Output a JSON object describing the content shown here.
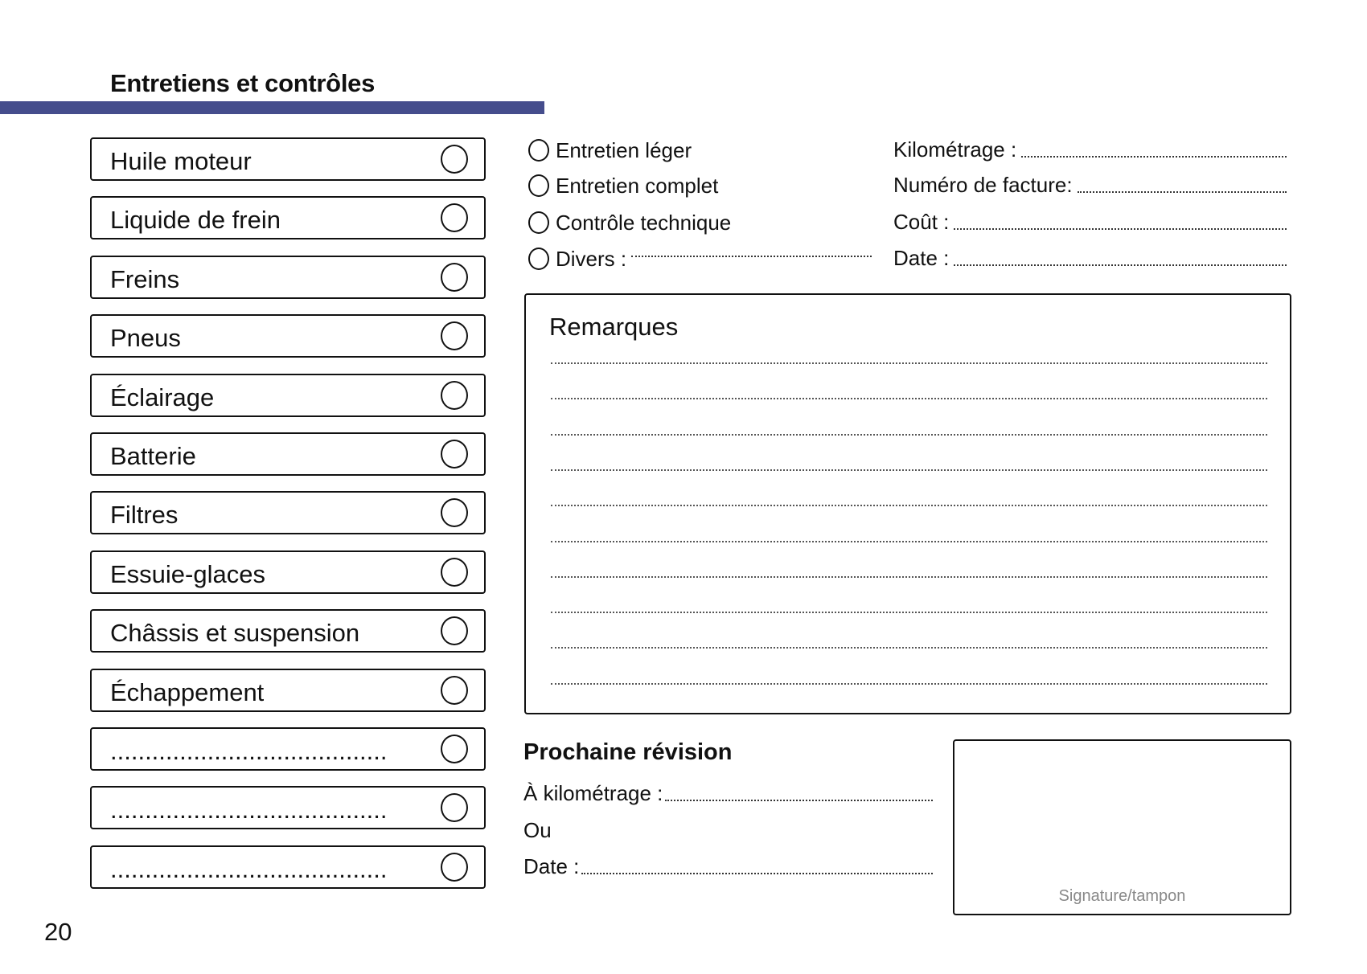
{
  "header": {
    "title": "Entretiens et contrôles",
    "accent_color": "#454d8c"
  },
  "checklist": [
    {
      "label": "Huile moteur"
    },
    {
      "label": "Liquide de frein"
    },
    {
      "label": "Freins"
    },
    {
      "label": "Pneus"
    },
    {
      "label": "Éclairage"
    },
    {
      "label": "Batterie"
    },
    {
      "label": "Filtres"
    },
    {
      "label": "Essuie-glaces"
    },
    {
      "label": "Châssis et suspension"
    },
    {
      "label": "Échappement"
    },
    {
      "label": "........................................"
    },
    {
      "label": "........................................"
    },
    {
      "label": "........................................"
    }
  ],
  "service_types": [
    {
      "label": "Entretien léger"
    },
    {
      "label": "Entretien complet"
    },
    {
      "label": "Contrôle technique"
    },
    {
      "label": "Divers :"
    }
  ],
  "fields": [
    {
      "label": "Kilométrage :"
    },
    {
      "label": "Numéro de facture:"
    },
    {
      "label": "Coût :"
    },
    {
      "label": "Date :"
    }
  ],
  "remarks": {
    "title": "Remarques"
  },
  "next_service": {
    "title": "Prochaine révision",
    "mileage_label": "À kilométrage :",
    "or_label": "Ou",
    "date_label": "Date :"
  },
  "signature": {
    "label": "Signature/tampon"
  },
  "page_number": "20"
}
